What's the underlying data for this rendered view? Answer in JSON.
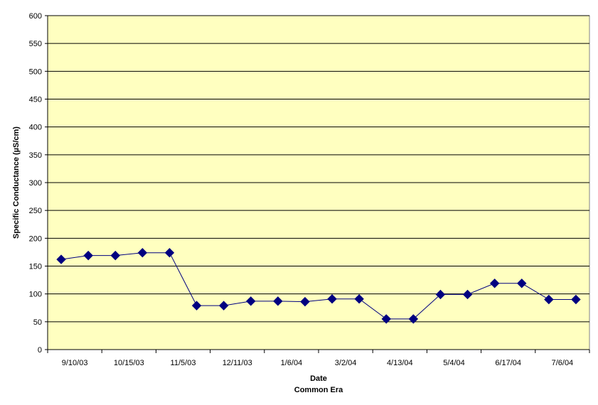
{
  "chart_data": {
    "type": "line",
    "title": "",
    "xlabel": "Date",
    "xlabel2": "Common Era",
    "ylabel": "Specific Conductance (µS/cm)",
    "ylim": [
      0,
      600
    ],
    "y_ticks": [
      0,
      50,
      100,
      150,
      200,
      250,
      300,
      350,
      400,
      450,
      500,
      550,
      600
    ],
    "x_tick_labels": [
      "9/10/03",
      "10/15/03",
      "11/5/03",
      "12/11/03",
      "1/6/04",
      "3/2/04",
      "4/13/04",
      "5/4/04",
      "6/17/04",
      "7/6/04"
    ],
    "grid": true,
    "legend": "none",
    "colors": {
      "plot_background": "#FFFFC0",
      "series_line": "#000080",
      "marker": "#000080",
      "gridline": "#000000"
    },
    "series": [
      {
        "values": [
          162,
          169,
          169,
          174,
          174,
          79,
          79,
          87,
          87,
          86,
          91,
          91,
          55,
          55,
          99,
          99,
          119,
          119,
          90,
          90
        ]
      }
    ]
  }
}
